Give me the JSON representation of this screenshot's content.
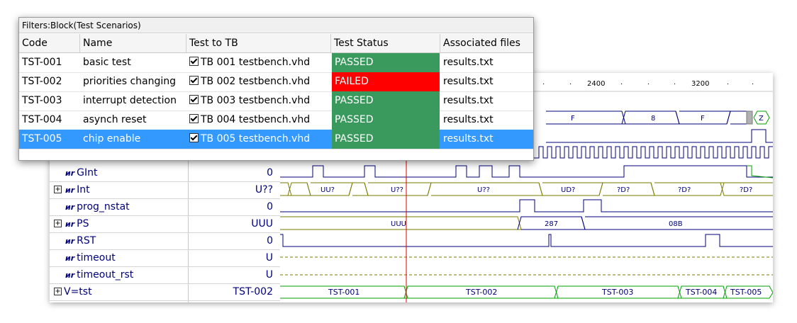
{
  "table": {
    "title": "Filters:Block(Test Scenarios)",
    "columns": [
      "Code",
      "Name",
      "Test to TB",
      "Test Status",
      "Associated files"
    ],
    "rows": [
      {
        "code": "TST-001",
        "name": "basic test",
        "tb": "TB 001 testbench.vhd",
        "status": "PASSED",
        "file": "results.txt",
        "selected": false
      },
      {
        "code": "TST-002",
        "name": "priorities changing",
        "tb": "TB 002 testbench.vhd",
        "status": "FAILED",
        "file": "results.txt",
        "selected": false
      },
      {
        "code": "TST-003",
        "name": "interrupt detection",
        "tb": "TB 003 testbench.vhd",
        "status": "PASSED",
        "file": "results.txt",
        "selected": false
      },
      {
        "code": "TST-004",
        "name": "asynch reset",
        "tb": "TB 004 testbench.vhd",
        "status": "PASSED",
        "file": "results.txt",
        "selected": false
      },
      {
        "code": "TST-005",
        "name": "chip enable",
        "tb": "TB 005 testbench.vhd",
        "status": "PASSED",
        "file": "results.txt",
        "selected": true
      }
    ],
    "colors": {
      "passed": "#3a9a5e",
      "failed": "#ff0000",
      "selection": "#3399ff"
    }
  },
  "timeline": {
    "ticks": [
      "2400",
      "3200"
    ]
  },
  "waveform": {
    "signals": [
      {
        "name": "GInt",
        "value": "0",
        "expandable": false
      },
      {
        "name": "Int",
        "value": "U??",
        "expandable": true
      },
      {
        "name": "prog_nstat",
        "value": "0",
        "expandable": false
      },
      {
        "name": "PS",
        "value": "UUU",
        "expandable": true
      },
      {
        "name": "RST",
        "value": "0",
        "expandable": false
      },
      {
        "name": "timeout",
        "value": "U",
        "expandable": false
      },
      {
        "name": "timeout_rst",
        "value": "U",
        "expandable": false
      },
      {
        "name": "V=tst",
        "value": "TST-002",
        "expandable": true
      }
    ],
    "bus_labels": {
      "top_bus": [
        "F",
        "8",
        "F",
        "Z"
      ],
      "Int": [
        "UU?",
        "U??",
        "U??",
        "UD?",
        "?D?",
        "?D?",
        "?D?"
      ],
      "PS": [
        "UUU",
        "287",
        "08B"
      ],
      "tst": [
        "TST-001",
        "TST-002",
        "TST-003",
        "TST-004",
        "TST-005"
      ]
    },
    "colors": {
      "wire": "#00007a",
      "bus": "#7a7a00",
      "test_bus": "#00a000",
      "cursor": "#e00000"
    }
  }
}
